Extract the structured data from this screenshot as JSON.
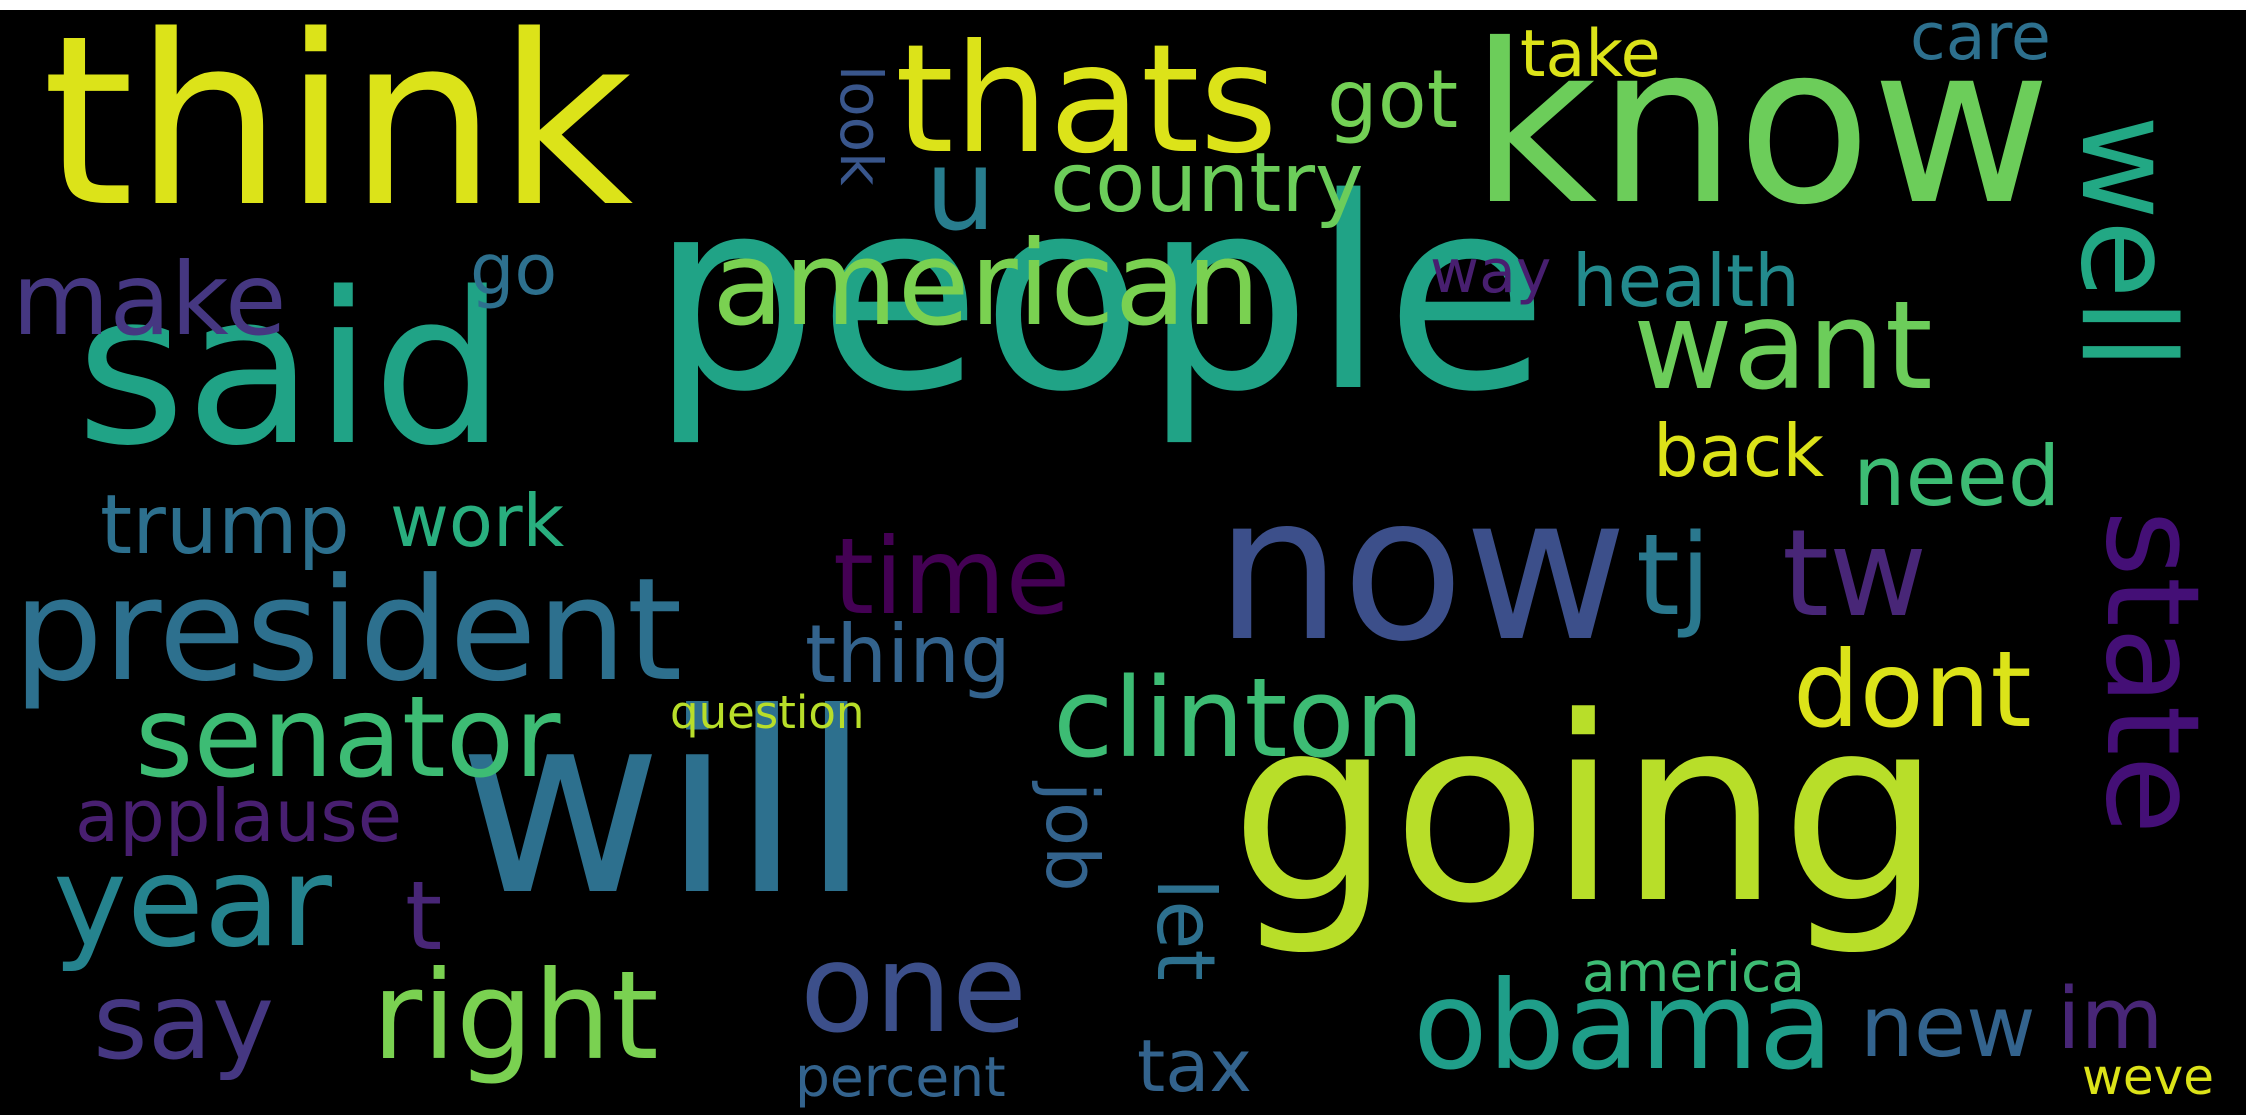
{
  "figure_title": "",
  "cloud": {
    "background": "#000000",
    "colormap": "viridis",
    "words": [
      {
        "text": "people",
        "color": "#20a386"
      },
      {
        "text": "going",
        "color": "#b8de29"
      },
      {
        "text": "will",
        "color": "#2d708e"
      },
      {
        "text": "think",
        "color": "#dce319"
      },
      {
        "text": "know",
        "color": "#6ccd5a"
      },
      {
        "text": "said",
        "color": "#20a386"
      },
      {
        "text": "now",
        "color": "#3c4f8a"
      },
      {
        "text": "thats",
        "color": "#dce319"
      },
      {
        "text": "president",
        "color": "#2d708e"
      },
      {
        "text": "american",
        "color": "#7ad151"
      },
      {
        "text": "well",
        "color": "#22a884"
      },
      {
        "text": "state",
        "color": "#440f76"
      },
      {
        "text": "want",
        "color": "#6ccd5a"
      },
      {
        "text": "clinton",
        "color": "#3dbc74"
      },
      {
        "text": "obama",
        "color": "#1f9e89"
      },
      {
        "text": "right",
        "color": "#7ad151"
      },
      {
        "text": "one",
        "color": "#3c4f8a"
      },
      {
        "text": "year",
        "color": "#25838e"
      },
      {
        "text": "senator",
        "color": "#3dbc74"
      },
      {
        "text": "make",
        "color": "#453781"
      },
      {
        "text": "say",
        "color": "#453781"
      },
      {
        "text": "time",
        "color": "#440154"
      },
      {
        "text": "tw",
        "color": "#482677"
      },
      {
        "text": "dont",
        "color": "#dce319"
      },
      {
        "text": "tj",
        "color": "#2a788e"
      },
      {
        "text": "u",
        "color": "#287d8e"
      },
      {
        "text": "country",
        "color": "#6ccd5a"
      },
      {
        "text": "got",
        "color": "#73d055"
      },
      {
        "text": "trump",
        "color": "#2d708e"
      },
      {
        "text": "work",
        "color": "#29af7f"
      },
      {
        "text": "thing",
        "color": "#33638d"
      },
      {
        "text": "new",
        "color": "#33638d"
      },
      {
        "text": "im",
        "color": "#482677"
      },
      {
        "text": "need",
        "color": "#3dbc74"
      },
      {
        "text": "back",
        "color": "#dce319"
      },
      {
        "text": "health",
        "color": "#238a8d"
      },
      {
        "text": "applause",
        "color": "#481f70"
      },
      {
        "text": "take",
        "color": "#dce319"
      },
      {
        "text": "care",
        "color": "#2d708e"
      },
      {
        "text": "go",
        "color": "#2d708e"
      },
      {
        "text": "way",
        "color": "#481f70"
      },
      {
        "text": "look",
        "color": "#39568c"
      },
      {
        "text": "t",
        "color": "#482677"
      },
      {
        "text": "job",
        "color": "#33638d"
      },
      {
        "text": "let",
        "color": "#2d708e"
      },
      {
        "text": "tax",
        "color": "#33638d"
      },
      {
        "text": "percent",
        "color": "#33638d"
      },
      {
        "text": "america",
        "color": "#3dbc74"
      },
      {
        "text": "question",
        "color": "#b8de29"
      },
      {
        "text": "weve",
        "color": "#dce319"
      }
    ]
  }
}
